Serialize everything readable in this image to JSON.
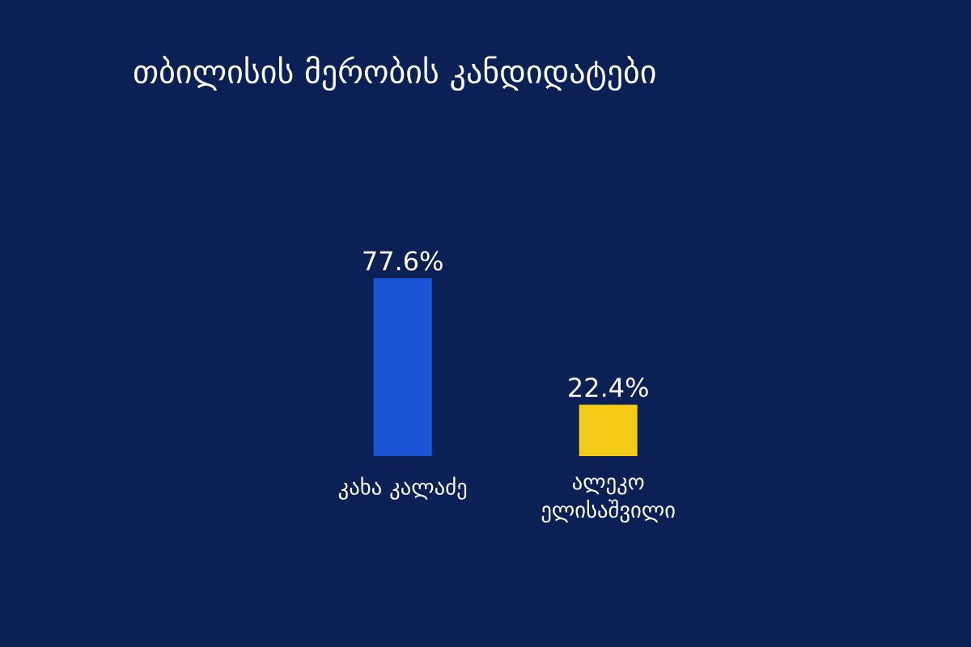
{
  "chart_data": {
    "type": "bar",
    "title": "თბილისის მერობის კანდიდატები",
    "categories": [
      "კახა კალაძე",
      "ალეკო ელისაშვილი"
    ],
    "values": [
      77.6,
      22.4
    ],
    "colors": [
      "#1a55d8",
      "#f4cb17"
    ],
    "value_labels": [
      "77.6%",
      "22.4%"
    ]
  }
}
